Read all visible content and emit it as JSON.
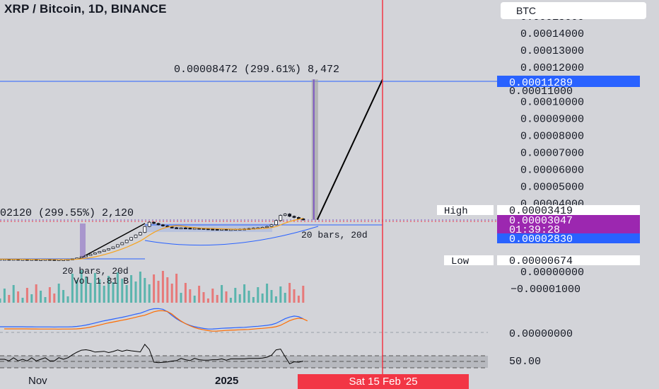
{
  "header": {
    "title": "XRP / Bitcoin, 1D, BINANCE",
    "currency_button": "BTC"
  },
  "chart_data": {
    "type": "candlestick",
    "symbol": "XRP / Bitcoin",
    "interval": "1D",
    "exchange": "BINANCE",
    "y_axis": {
      "ticks": [
        "0.00014000",
        "0.00013000",
        "0.00012000",
        "0.00010000",
        "0.00009000",
        "0.00008000",
        "0.00007000",
        "0.00006000",
        "0.00005000",
        "0.00004000",
        "0.00000000",
        "−0.00001000"
      ],
      "partial_top_tick": "0.00015000",
      "range": [
        -1e-05,
        0.000152
      ]
    },
    "x_axis": {
      "ticks": [
        "Nov",
        "2025"
      ],
      "crosshair_date": "Sat 15 Feb '25"
    },
    "price_labels": {
      "target": "0.00011289",
      "hidden_under_target": "0.00011000",
      "high_label": "High",
      "high": "0.00003419",
      "last": "0.00003047",
      "countdown": "01:39:28",
      "support": "0.00002830",
      "low_label": "Low",
      "low": "0.00000674"
    },
    "annotations": {
      "measure_upper": "0.00008472 (299.61%) 8,472",
      "measure_lower": "02120 (299.55%) 2,120",
      "bars_upper": "20 bars, 20d",
      "bars_lower": "20 bars, 20d",
      "volume": "Vol 1.81 B"
    },
    "series_closes": [
      7.3e-06,
      7.3e-06,
      7.2e-06,
      7.3e-06,
      7.2e-06,
      7.2e-06,
      7.1e-06,
      7.2e-06,
      7.1e-06,
      7.1e-06,
      7.2e-06,
      7.1e-06,
      7e-06,
      7.1e-06,
      7.1e-06,
      7.2e-06,
      7.5e-06,
      8e-06,
      8.7e-06,
      9.5e-06,
      1.03e-05,
      1.1e-05,
      1.18e-05,
      1.27e-05,
      1.35e-05,
      1.45e-05,
      1.58e-05,
      1.7e-05,
      1.85e-05,
      2e-05,
      2.15e-05,
      2.3e-05,
      2.65e-05,
      2.9e-05,
      2.83e-05,
      2.75e-05,
      2.68e-05,
      2.62e-05,
      2.58e-05,
      2.55e-05,
      2.57e-05,
      2.56e-05,
      2.53e-05,
      2.55e-05,
      2.54e-05,
      2.52e-05,
      2.5e-05,
      2.49e-05,
      2.48e-05,
      2.49e-05,
      2.47e-05,
      2.48e-05,
      2.49e-05,
      2.5e-05,
      2.51e-05,
      2.53e-05,
      2.55e-05,
      2.57e-05,
      2.6e-05,
      2.65e-05,
      2.75e-05,
      3e-05,
      3.3e-05,
      3.38e-05,
      3.25e-05,
      3.18e-05,
      3.1e-05,
      3.05e-05
    ],
    "projection": {
      "from": 3.05e-05,
      "to": 0.00011289
    },
    "oscillator_level": "50.00",
    "macd_zero": "0.00000000"
  },
  "colors": {
    "background": "#d3d4d9",
    "candle": "#131722",
    "blue_line": "#2962ff",
    "ma_orange": "#f7a21b",
    "red_cursor": "#f23645",
    "purple_bar": "#7e57c2",
    "last_price": "#9c27b0",
    "volume_green": "#26a69a",
    "volume_red": "#ef5350"
  }
}
